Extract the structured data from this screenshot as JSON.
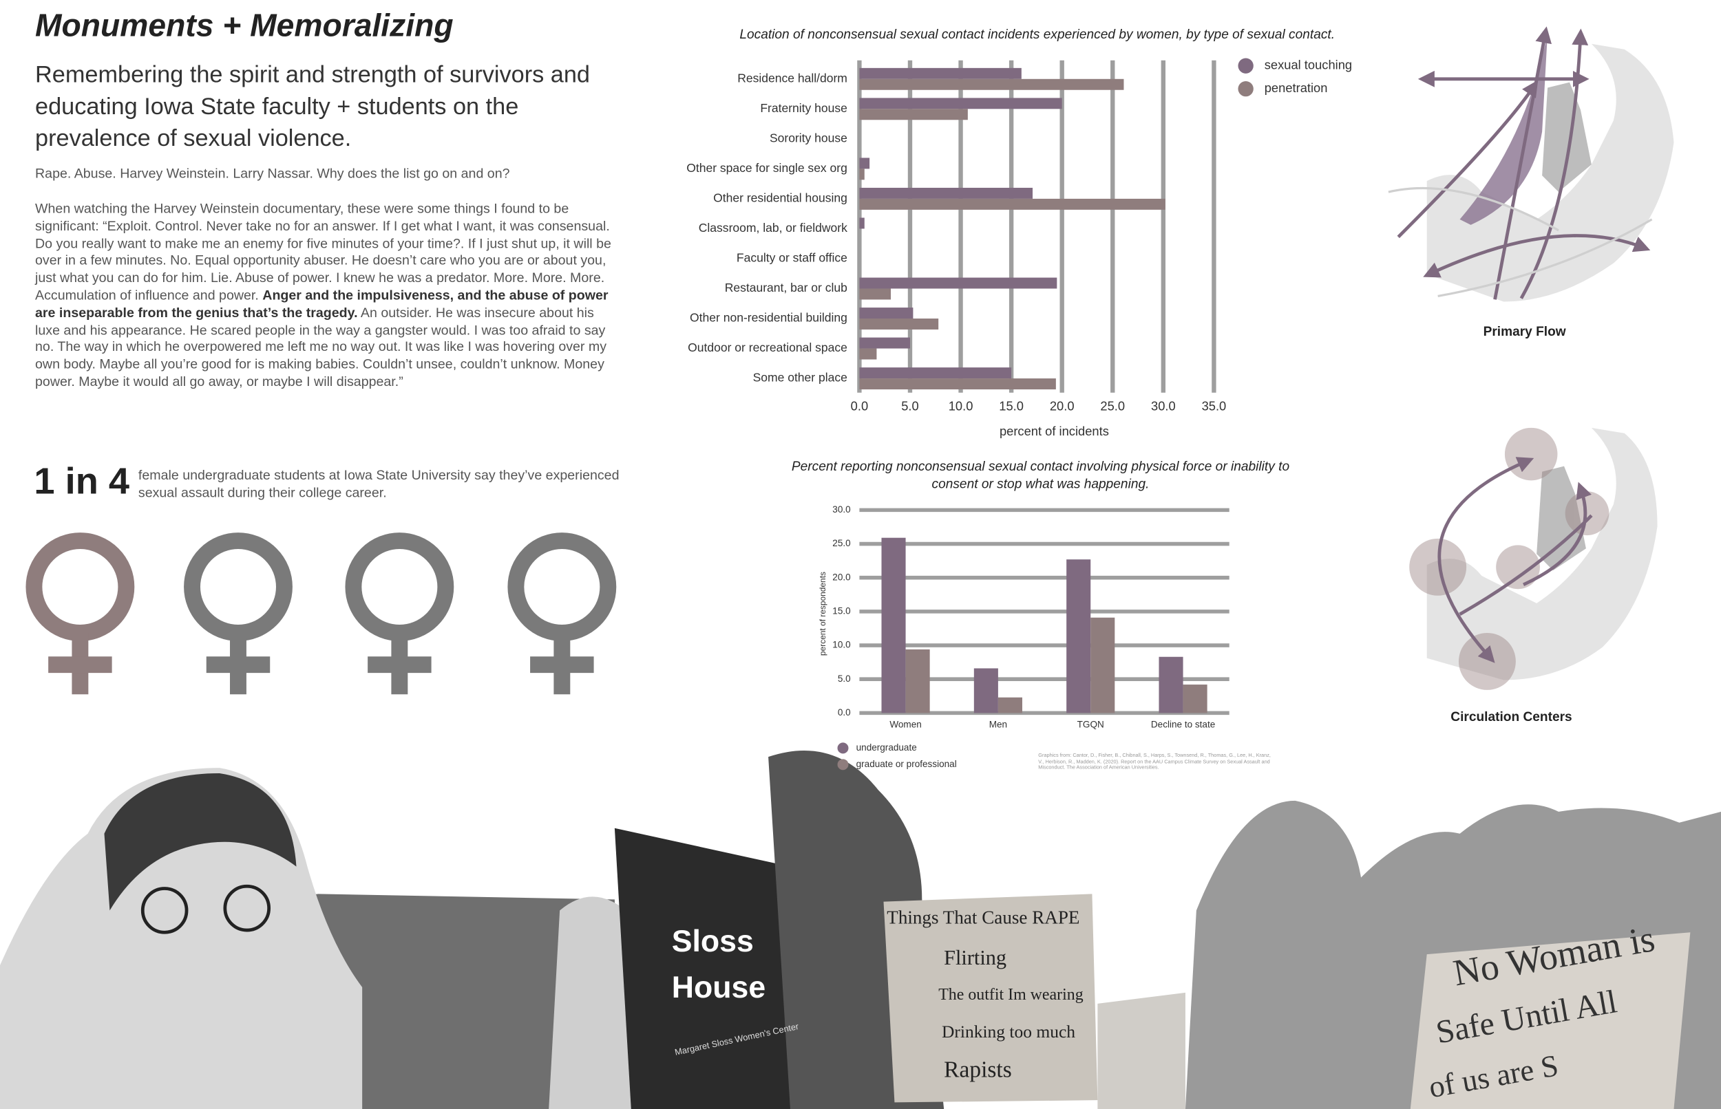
{
  "header": {
    "title": "Monuments + Memoralizing",
    "subtitle": "Remembering the spirit and strength of survivors and educating Iowa State faculty + students on the prevalence of sexual violence."
  },
  "body": {
    "intro": "Rape. Abuse. Harvey Weinstein. Larry Nassar. Why does the list go on and on?",
    "paragraph": [
      "When watching the Harvey Weinstein documentary, these were some things I found to be significant: “Exploit. Control. Never take no for an answer. If I get what I want, it was consensual. Do you really want to make me an enemy for five minutes of your time?. If I just shut up, it will be over in a few minutes. No. Equal opportunity abuser. He doesn’t care who you are or about you, just what you can do for him. Lie. Abuse of power. I knew he was a predator. More. More. More. Accumulation of influence and power. ",
      "Anger and the impulsiveness, and the abuse of power are inseparable from the genius that’s the tragedy.",
      " An outsider. He was insecure about his luxe and his appearance. He scared people in the way a gangster would. I was too afraid to say no. The way in which he overpowered me left me no way out. It was like I was hovering over my own body. Maybe all you’re good for is making babies. Couldn’t unsee, couldn’t unknow. Money power. Maybe it would all go away, or maybe I will disappear.”"
    ]
  },
  "stat": {
    "figure": "1 in 4",
    "text": "female undergraduate students at Iowa State University say they’ve experienced sexual assault during their college career."
  },
  "chart_data": [
    {
      "type": "barh",
      "title": "Location of nonconsensual sexual contact incidents experienced by women, by type of sexual contact.",
      "categories": [
        "Residence hall/dorm",
        "Fraternity house",
        "Sorority house",
        "Other space for single sex org",
        "Other residential housing",
        "Classroom, lab, or fieldwork",
        "Faculty or staff office",
        "Restaurant, bar or club",
        "Other non-residential building",
        "Outdoor or recreational space",
        "Some other place"
      ],
      "series": [
        {
          "name": "sexual touching",
          "color": "#7f6a80",
          "values": [
            16.0,
            20.0,
            0,
            1.0,
            17.1,
            0.5,
            0,
            19.5,
            5.3,
            5.0,
            15.0
          ]
        },
        {
          "name": "penetration",
          "color": "#8f7d7d",
          "values": [
            26.1,
            10.7,
            0,
            0.5,
            30.2,
            0,
            0,
            3.1,
            7.8,
            1.7,
            19.4
          ]
        }
      ],
      "xlim": [
        0,
        35
      ],
      "xticks": [
        {
          "value": 0,
          "label": "0.0"
        },
        {
          "value": 5,
          "label": "5.0"
        },
        {
          "value": 10,
          "label": "10.0"
        },
        {
          "value": 15,
          "label": "15.0"
        },
        {
          "value": 20,
          "label": "20.0"
        },
        {
          "value": 25,
          "label": "25.0"
        },
        {
          "value": 30,
          "label": "30.0"
        },
        {
          "value": 35,
          "label": "35.0"
        }
      ],
      "xlabel": "percent of incidents",
      "grid": true,
      "legend": "right"
    },
    {
      "type": "bar",
      "title": "Percent reporting nonconsensual sexual contact involving physical force or inability to consent or stop what was happening.",
      "categories": [
        "Women",
        "Men",
        "TGQN",
        "Decline to state"
      ],
      "series": [
        {
          "name": "undergraduate",
          "color": "#7f6a80",
          "values": [
            25.9,
            6.6,
            22.7,
            8.3
          ]
        },
        {
          "name": "graduate or professional",
          "color": "#8f7d7d",
          "values": [
            9.4,
            2.3,
            14.1,
            4.2
          ]
        }
      ],
      "ylim": [
        0,
        30
      ],
      "yticks": [
        {
          "value": 0,
          "label": "0.0"
        },
        {
          "value": 5,
          "label": "5.0"
        },
        {
          "value": 10,
          "label": "10.0"
        },
        {
          "value": 15,
          "label": "15.0"
        },
        {
          "value": 20,
          "label": "20.0"
        },
        {
          "value": 25,
          "label": "25.0"
        },
        {
          "value": 30,
          "label": "30.0"
        }
      ],
      "ylabel": "percent of respondents",
      "grid": true,
      "legend": "bottom",
      "source": "Graphics from: Cantor, D., Fisher, B., Chibnall, S., Harps, S., Townsend, R., Thomas, G., Lee, H., Kranz, V., Herbison, R., Madden, K. (2020). Report on the AAU Campus Climate Survey on Sexual Assault and Misconduct. The Association of American Universities."
    }
  ],
  "maps": {
    "primary": "Primary Flow",
    "centers": "Circulation Centers"
  },
  "photos": {
    "sloss_sign": {
      "line_1": "Sloss",
      "line_2": "House",
      "subtitle": "Margaret Sloss Women's Center"
    },
    "protest_sign": {
      "heading": "Things That Cause RAPE",
      "items": [
        "Flirting",
        "The outfit Im wearing",
        "Drinking too much",
        "Rapists"
      ]
    },
    "march_sign": [
      "No Woman is",
      "Safe Until All",
      "of us are S"
    ]
  }
}
